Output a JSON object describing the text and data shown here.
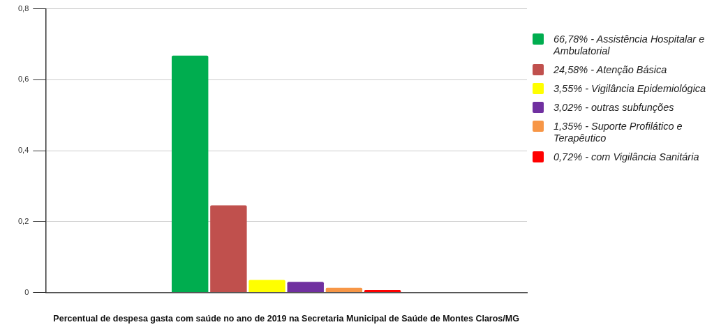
{
  "chart_data": {
    "type": "bar",
    "xlabel": "Percentual de despesa gasta com saúde no ano de 2019 na Secretaria Municipal de Saúde de Montes Claros/MG",
    "categories": [
      null
    ],
    "series": [
      {
        "name": "66,78% - Assistência Hospitalar e Ambulatorial",
        "color": "#00ad4f",
        "values": [
          0.6678
        ]
      },
      {
        "name": "24,58% - Atenção Básica",
        "color": "#c0504d",
        "values": [
          0.2458
        ]
      },
      {
        "name": "3,55%  - Vigilância Epidemiológica",
        "color": "#ffff00",
        "values": [
          0.0355
        ]
      },
      {
        "name": "3,02%  - outras subfunções",
        "color": "#7030a0",
        "values": [
          0.0302
        ]
      },
      {
        "name": "1,35%  - Suporte Profilático e Terapêutico",
        "color": "#f79646",
        "values": [
          0.0135
        ]
      },
      {
        "name": "0,72% - com Vigilância Sanitária",
        "color": "#ff0000",
        "values": [
          0.0072
        ]
      }
    ],
    "ylim": [
      0,
      0.8
    ],
    "yticks": [
      0,
      {
        "value": 0.2,
        "label": "0,2"
      },
      {
        "value": 0.4,
        "label": "0,4"
      },
      {
        "value": 0.6,
        "label": "0,6"
      },
      {
        "value": 0.8,
        "label": "0,8"
      }
    ],
    "grid": "y",
    "legend": "right"
  }
}
